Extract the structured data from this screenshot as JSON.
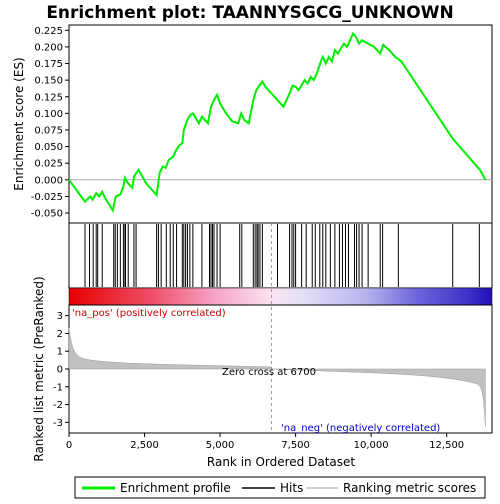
{
  "chart_data": {
    "type": "line",
    "title": "Enrichment plot: TAANNYSGCG_UNKNOWN",
    "es_panel": {
      "ylabel": "Enrichment score (ES)",
      "ylim": [
        -0.065,
        0.233
      ],
      "yticks": [
        -0.05,
        -0.025,
        0.0,
        0.025,
        0.05,
        0.075,
        0.1,
        0.125,
        0.15,
        0.175,
        0.2,
        0.225
      ],
      "ytick_labels": [
        "-0.050",
        "-0.025",
        "0.000",
        "0.025",
        "0.050",
        "0.075",
        "0.100",
        "0.125",
        "0.150",
        "0.175",
        "0.200",
        "0.225"
      ],
      "series": [
        {
          "name": "Enrichment profile",
          "color": "#00ee00",
          "x": [
            0,
            530,
            700,
            780,
            900,
            1000,
            1100,
            1200,
            1300,
            1450,
            1550,
            1700,
            1800,
            1850,
            1950,
            2100,
            2150,
            2300,
            2550,
            2900,
            3000,
            3100,
            3200,
            3300,
            3450,
            3550,
            3650,
            3750,
            3800,
            3900,
            4000,
            4100,
            4300,
            4400,
            4600,
            4700,
            4800,
            4900,
            5000,
            5200,
            5400,
            5600,
            5700,
            5800,
            5950,
            6100,
            6200,
            6300,
            6400,
            6500,
            6600,
            6700,
            6900,
            7100,
            7300,
            7400,
            7500,
            7600,
            7800,
            7900,
            8000,
            8100,
            8200,
            8350,
            8400,
            8500,
            8600,
            8700,
            8800,
            8900,
            9000,
            9100,
            9200,
            9300,
            9400,
            9500,
            9600,
            9700,
            9900,
            10100,
            10300,
            10400,
            10600,
            10800,
            11000,
            12700,
            13600,
            13780
          ],
          "y": [
            0.0,
            -0.033,
            -0.025,
            -0.03,
            -0.02,
            -0.025,
            -0.018,
            -0.028,
            -0.035,
            -0.046,
            -0.025,
            -0.022,
            -0.01,
            0.003,
            -0.005,
            -0.012,
            0.005,
            0.015,
            -0.005,
            -0.023,
            0.01,
            0.02,
            0.018,
            0.03,
            0.035,
            0.045,
            0.052,
            0.055,
            0.075,
            0.088,
            0.097,
            0.1,
            0.085,
            0.095,
            0.085,
            0.11,
            0.12,
            0.128,
            0.115,
            0.1,
            0.088,
            0.085,
            0.1,
            0.09,
            0.085,
            0.12,
            0.135,
            0.142,
            0.148,
            0.14,
            0.135,
            0.13,
            0.12,
            0.11,
            0.13,
            0.142,
            0.14,
            0.135,
            0.15,
            0.145,
            0.155,
            0.15,
            0.16,
            0.18,
            0.185,
            0.175,
            0.185,
            0.178,
            0.195,
            0.19,
            0.198,
            0.205,
            0.2,
            0.21,
            0.22,
            0.215,
            0.205,
            0.21,
            0.205,
            0.2,
            0.19,
            0.203,
            0.195,
            0.185,
            0.178,
            0.062,
            0.015,
            0.0
          ]
        }
      ]
    },
    "hits_panel": {
      "hits": [
        530,
        680,
        800,
        900,
        950,
        1100,
        1480,
        1530,
        1600,
        1700,
        1800,
        1850,
        1870,
        1960,
        2150,
        2220,
        2900,
        2960,
        3050,
        3220,
        3350,
        3450,
        3560,
        3750,
        3800,
        3860,
        3920,
        4000,
        4100,
        4400,
        4650,
        4700,
        4750,
        4800,
        4900,
        5000,
        5650,
        5720,
        6100,
        6160,
        6220,
        6260,
        6320,
        6400,
        6900,
        7300,
        7380,
        7440,
        7500,
        7700,
        7850,
        8050,
        8150,
        8300,
        8400,
        8500,
        8650,
        8800,
        8950,
        9050,
        9150,
        9250,
        9450,
        9520,
        9600,
        9700,
        9900,
        10300,
        10380,
        10900,
        12700,
        13580
      ]
    },
    "metric_panel": {
      "ylabel": "Ranked list metric (PreRanked)",
      "xlabel": "Rank in Ordered Dataset",
      "xlim": [
        0,
        14000
      ],
      "xticks": [
        0,
        2500,
        5000,
        7500,
        10000,
        12500
      ],
      "xtick_labels": [
        "0",
        "2,500",
        "5,000",
        "7,500",
        "10,000",
        "12,500"
      ],
      "ylim": [
        -3.6,
        3.6
      ],
      "yticks": [
        -3,
        -2,
        -1,
        0,
        1,
        2,
        3
      ],
      "ytick_labels": [
        "-3",
        "-2",
        "-1",
        "0",
        "1",
        "2",
        "3"
      ],
      "zero_cross_rank": 6700,
      "zero_cross_label": "Zero cross at 6700",
      "pos_label": "'na_pos' (positively correlated)",
      "neg_label": "'na_neg' (negatively correlated)",
      "n_ranks": 13780
    },
    "legend": {
      "placement": "bottom",
      "entries": [
        {
          "label": "Enrichment profile",
          "color": "#00ee00"
        },
        {
          "label": "Hits",
          "color": "#000000"
        },
        {
          "label": "Ranking metric scores",
          "color": "#c0c0c0"
        }
      ]
    },
    "colors": {
      "profile": "#00ee00",
      "pos_label": "#cc0000",
      "neg_label": "#0000cc",
      "metric_fill": "#c0c0c0",
      "zero_line": "#aaaaaa"
    }
  }
}
